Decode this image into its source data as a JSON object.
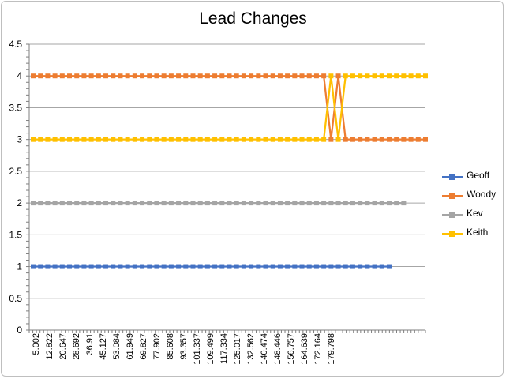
{
  "chart_data": {
    "type": "line",
    "title": "Lead Changes",
    "xlabel": "",
    "ylabel": "",
    "ylim": [
      0,
      4.5
    ],
    "y_ticks": [
      "0",
      "0.5",
      "1",
      "1.5",
      "2",
      "2.5",
      "3",
      "3.5",
      "4",
      "4.5"
    ],
    "x_tick_labels": [
      "5.002",
      "12.822",
      "20.647",
      "28.692",
      "36.91",
      "45.127",
      "53.084",
      "61.949",
      "69.827",
      "77.902",
      "85.608",
      "93.357",
      "101.337",
      "109.499",
      "117.334",
      "125.017",
      "132.562",
      "140.474",
      "148.446",
      "156.757",
      "164.639",
      "172.164",
      "179.798"
    ],
    "grid": true,
    "legend_position": "right",
    "series": [
      {
        "name": "Geoff",
        "color": "#4472C4",
        "values": [
          1,
          1,
          1,
          1,
          1,
          1,
          1,
          1,
          1,
          1,
          1,
          1,
          1,
          1,
          1,
          1,
          1,
          1,
          1,
          1,
          1,
          1,
          1,
          1,
          1,
          1,
          1,
          1,
          1,
          1,
          1,
          1,
          1,
          1,
          1,
          1,
          1,
          1,
          1,
          1,
          1,
          1,
          1,
          1,
          1,
          1,
          1,
          1,
          1,
          1
        ]
      },
      {
        "name": "Woody",
        "color": "#ED7D31",
        "values": [
          4,
          4,
          4,
          4,
          4,
          4,
          4,
          4,
          4,
          4,
          4,
          4,
          4,
          4,
          4,
          4,
          4,
          4,
          4,
          4,
          4,
          4,
          4,
          4,
          4,
          4,
          4,
          4,
          4,
          4,
          4,
          4,
          4,
          4,
          4,
          4,
          4,
          4,
          4,
          4,
          4,
          3,
          4,
          3,
          3,
          3,
          3,
          3,
          3,
          3,
          3,
          3,
          3,
          3,
          3
        ]
      },
      {
        "name": "Kev",
        "color": "#A5A5A5",
        "values": [
          2,
          2,
          2,
          2,
          2,
          2,
          2,
          2,
          2,
          2,
          2,
          2,
          2,
          2,
          2,
          2,
          2,
          2,
          2,
          2,
          2,
          2,
          2,
          2,
          2,
          2,
          2,
          2,
          2,
          2,
          2,
          2,
          2,
          2,
          2,
          2,
          2,
          2,
          2,
          2,
          2,
          2,
          2,
          2,
          2,
          2,
          2,
          2,
          2,
          2,
          2,
          2
        ]
      },
      {
        "name": "Keith",
        "color": "#FFC000",
        "values": [
          3,
          3,
          3,
          3,
          3,
          3,
          3,
          3,
          3,
          3,
          3,
          3,
          3,
          3,
          3,
          3,
          3,
          3,
          3,
          3,
          3,
          3,
          3,
          3,
          3,
          3,
          3,
          3,
          3,
          3,
          3,
          3,
          3,
          3,
          3,
          3,
          3,
          3,
          3,
          3,
          3,
          4,
          3,
          4,
          4,
          4,
          4,
          4,
          4,
          4,
          4,
          4,
          4,
          4,
          4
        ]
      }
    ]
  }
}
